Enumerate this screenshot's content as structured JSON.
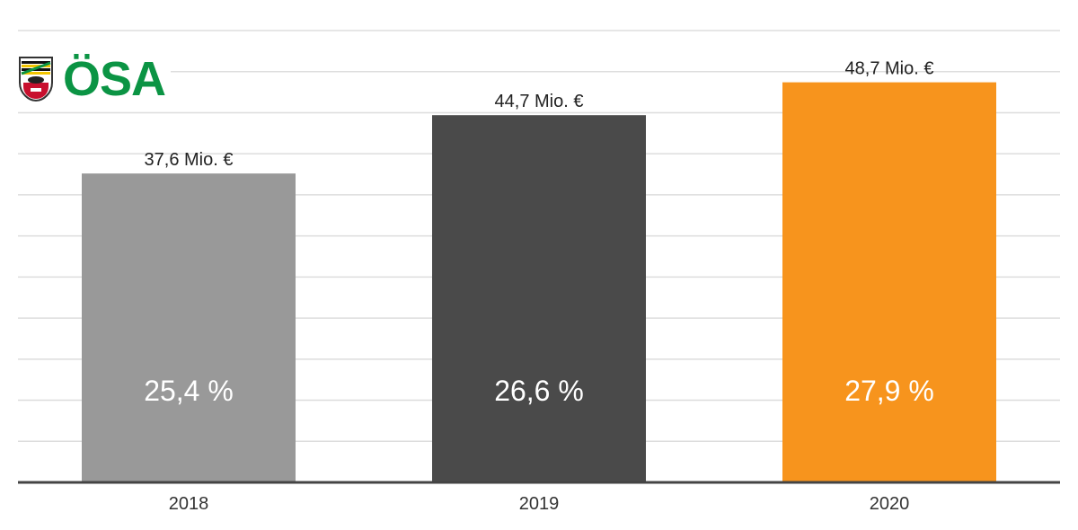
{
  "logo": {
    "text": "ÖSA",
    "emblem_icon": "coat-of-arms-icon",
    "brand_color": "#0b9444"
  },
  "chart_data": {
    "type": "bar",
    "categories": [
      "2018",
      "2019",
      "2020"
    ],
    "values": [
      37.6,
      44.7,
      48.7
    ],
    "value_labels": [
      "37,6 Mio. €",
      "44,7 Mio. €",
      "48,7 Mio. €"
    ],
    "percent_labels": [
      "25,4 %",
      "26,6 %",
      "27,9 %"
    ],
    "colors": [
      "#999999",
      "#4a4a4a",
      "#f7941d"
    ],
    "ylim": [
      0,
      55
    ],
    "grid": true,
    "legend": "none"
  }
}
